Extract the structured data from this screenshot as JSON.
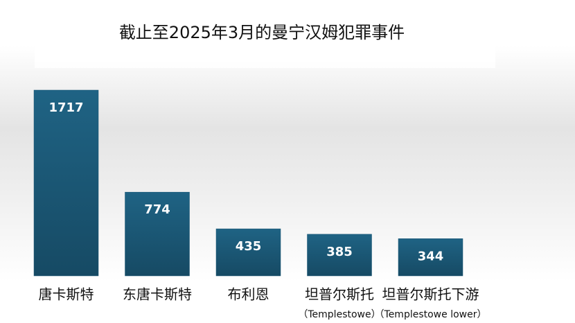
{
  "chart_data": {
    "type": "bar",
    "title": "截止至2025年3月的曼宁汉姆犯罪事件",
    "categories": [
      "唐卡斯特",
      "东唐卡斯特",
      "布利恩",
      "坦普尔斯托",
      "坦普尔斯托下游"
    ],
    "category_sublabels": [
      null,
      null,
      null,
      "（Templestowe）",
      "（Templestowe lower）"
    ],
    "values": [
      1717,
      774,
      435,
      385,
      344
    ],
    "color": "#1b5775"
  }
}
